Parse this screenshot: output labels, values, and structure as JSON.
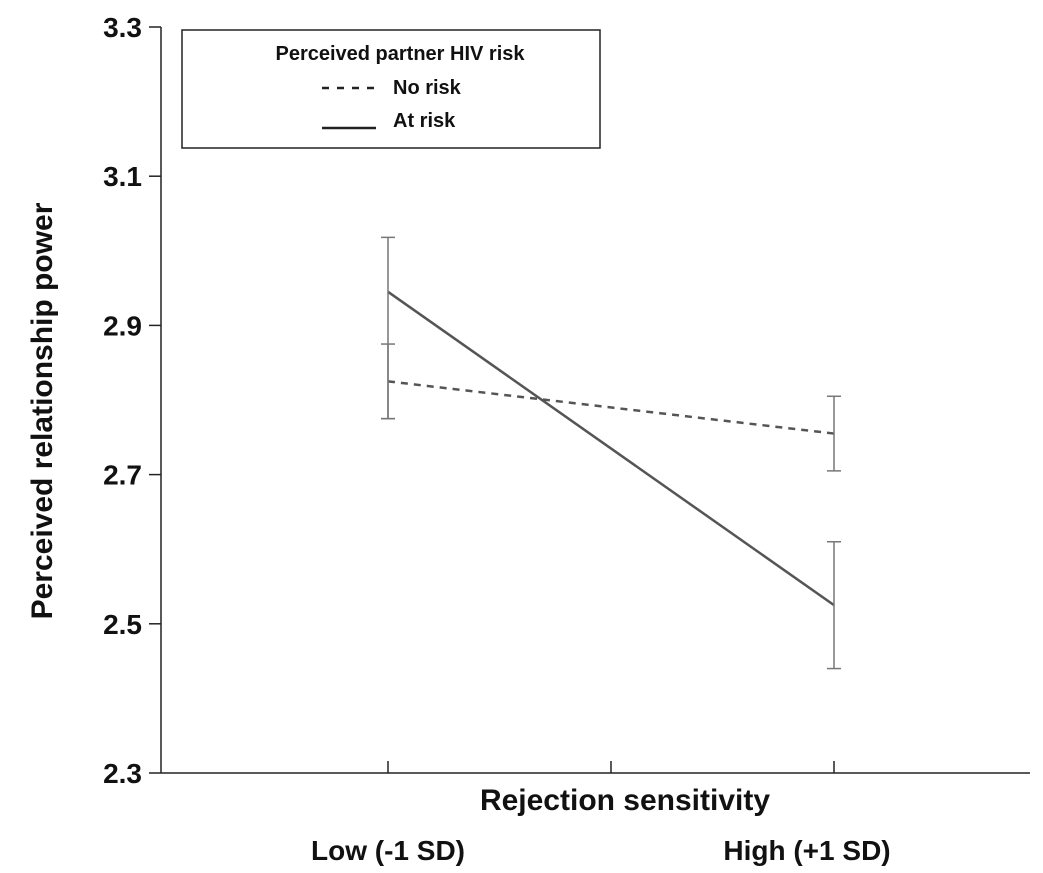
{
  "chart_data": {
    "type": "line",
    "xlabel": "Rejection sensitivity",
    "ylabel": "Perceived relationship power",
    "categories": [
      "Low (-1 SD)",
      "High (+1 SD)"
    ],
    "ylim": [
      2.3,
      3.3
    ],
    "yticks": [
      "2.3",
      "2.5",
      "2.7",
      "2.9",
      "3.1",
      "3.3"
    ],
    "grid": false,
    "legend": {
      "title": "Perceived partner HIV risk",
      "placement": "top-left"
    },
    "series": [
      {
        "name": "No risk",
        "style": "dashed",
        "color": "#555555",
        "values": [
          2.825,
          2.755
        ],
        "errors": [
          [
            2.775,
            2.875
          ],
          [
            2.705,
            2.805
          ]
        ]
      },
      {
        "name": "At risk",
        "style": "solid",
        "color": "#555555",
        "values": [
          2.945,
          2.525
        ],
        "errors": [
          [
            2.775,
            3.018
          ],
          [
            2.44,
            2.61
          ]
        ]
      }
    ]
  }
}
